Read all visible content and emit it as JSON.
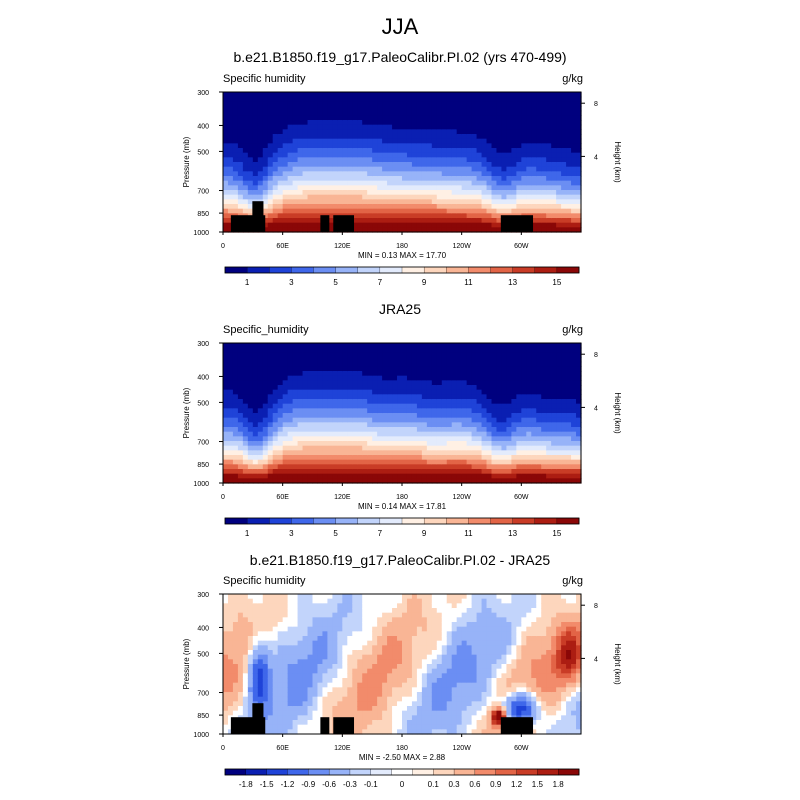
{
  "figure": {
    "title": "JJA"
  },
  "colors": {
    "abs_scale": [
      "#00007f",
      "#0a1fb2",
      "#1f43d8",
      "#3f67ea",
      "#6b8ef3",
      "#97b3f8",
      "#c2d4fb",
      "#e3ebfc",
      "#fff0e4",
      "#fdd6bd",
      "#f9b595",
      "#f28b6b",
      "#e26446",
      "#c93c26",
      "#ac1d12",
      "#8a0707"
    ],
    "diff_scale": [
      "#00007f",
      "#0a1fb2",
      "#1f43d8",
      "#3f67ea",
      "#6b8ef3",
      "#97b3f8",
      "#c2d4fb",
      "#e3ebfc",
      "#ffffff",
      "#fff0e4",
      "#fdd6bd",
      "#f9b595",
      "#f28b6b",
      "#e26446",
      "#c93c26",
      "#ac1d12",
      "#8a0707"
    ],
    "land": "#000000"
  },
  "chart_data": [
    {
      "type": "heatmap",
      "title": "b.e21.B1850.f19_g17.PaleoCalibr.PI.02 (yrs 470-499)",
      "left_label": "Specific humidity",
      "units": "g/kg",
      "ylabel": "Pressure (mb)",
      "y2label": "Height (km)",
      "yticks": [
        "300",
        "400",
        "500",
        "700",
        "850",
        "1000"
      ],
      "y2ticks": [
        "8",
        "4"
      ],
      "xticks": [
        "0",
        "60E",
        "120E",
        "180",
        "120W",
        "60W"
      ],
      "stats": "MIN =   0.13  MAX =  17.70",
      "colorbar_labels": [
        "1",
        "3",
        "5",
        "7",
        "9",
        "11",
        "13",
        "15"
      ],
      "min": 0.13,
      "max": 17.7,
      "scale": "abs",
      "land_mask": true
    },
    {
      "type": "heatmap",
      "title": "JRA25",
      "left_label": "Specific_humidity",
      "units": "g/kg",
      "ylabel": "Pressure (mb)",
      "y2label": "Height (km)",
      "yticks": [
        "300",
        "400",
        "500",
        "700",
        "850",
        "1000"
      ],
      "y2ticks": [
        "8",
        "4"
      ],
      "xticks": [
        "0",
        "60E",
        "120E",
        "180",
        "120W",
        "60W"
      ],
      "stats": "MIN =   0.14  MAX =  17.81",
      "colorbar_labels": [
        "1",
        "3",
        "5",
        "7",
        "9",
        "11",
        "13",
        "15"
      ],
      "min": 0.14,
      "max": 17.81,
      "scale": "abs",
      "land_mask": false
    },
    {
      "type": "heatmap",
      "title": "b.e21.B1850.f19_g17.PaleoCalibr.PI.02 - JRA25",
      "left_label": "Specific humidity",
      "units": "g/kg",
      "ylabel": "Pressure (mb)",
      "y2label": "Height (km)",
      "yticks": [
        "300",
        "400",
        "500",
        "700",
        "850",
        "1000"
      ],
      "y2ticks": [
        "8",
        "4"
      ],
      "xticks": [
        "0",
        "60E",
        "120E",
        "180",
        "120W",
        "60W"
      ],
      "stats": "MIN =  -2.50  MAX =   2.88",
      "colorbar_labels": [
        "-1.8",
        "-1.5",
        "-1.2",
        "-0.9",
        "-0.6",
        "-0.3",
        "-0.1",
        "0",
        "0.1",
        "0.3",
        "0.6",
        "0.9",
        "1.2",
        "1.5",
        "1.8"
      ],
      "min": -2.5,
      "max": 2.88,
      "scale": "diff",
      "land_mask": true
    }
  ]
}
